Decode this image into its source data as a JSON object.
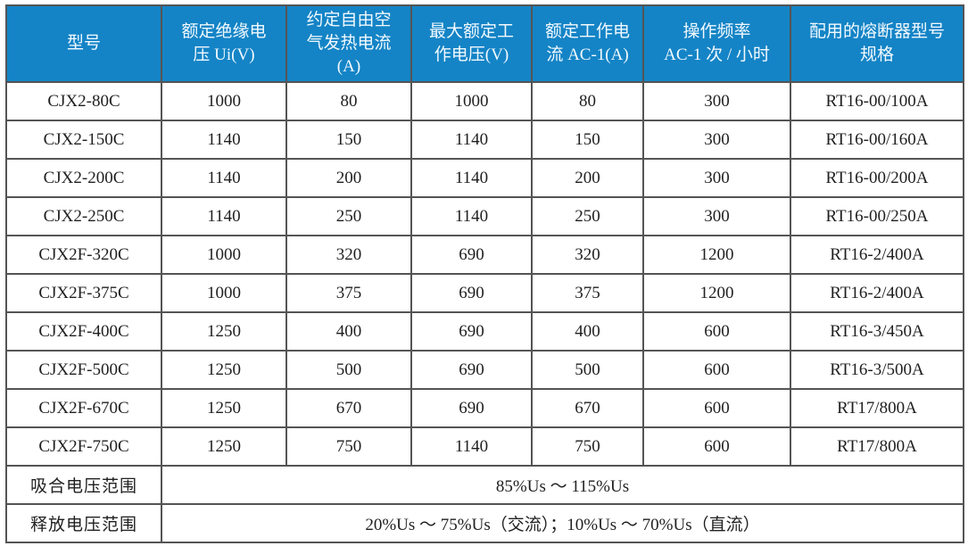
{
  "table": {
    "title_semantic": "contactor-specification-table",
    "columns": [
      "型号",
      "额定绝缘电压 Ui(V)",
      "约定自由空气发热电流(A)",
      "最大额定工作电压(V)",
      "额定工作电流 AC-1(A)",
      "操作频率\nAC-1 次 / 小时",
      "配用的熔断器型号规格"
    ],
    "rows": [
      {
        "cells": [
          "CJX2-80C",
          "1000",
          "80",
          "1000",
          "80",
          "300",
          "RT16-00/100A"
        ]
      },
      {
        "cells": [
          "CJX2-150C",
          "1140",
          "150",
          "1140",
          "150",
          "300",
          "RT16-00/160A"
        ]
      },
      {
        "cells": [
          "CJX2-200C",
          "1140",
          "200",
          "1140",
          "200",
          "300",
          "RT16-00/200A"
        ]
      },
      {
        "cells": [
          "CJX2-250C",
          "1140",
          "250",
          "1140",
          "250",
          "300",
          "RT16-00/250A"
        ]
      },
      {
        "cells": [
          "CJX2F-320C",
          "1000",
          "320",
          "690",
          "320",
          "1200",
          "RT16-2/400A"
        ]
      },
      {
        "cells": [
          "CJX2F-375C",
          "1000",
          "375",
          "690",
          "375",
          "1200",
          "RT16-2/400A"
        ]
      },
      {
        "cells": [
          "CJX2F-400C",
          "1250",
          "400",
          "690",
          "400",
          "600",
          "RT16-3/450A"
        ]
      },
      {
        "cells": [
          "CJX2F-500C",
          "1250",
          "500",
          "690",
          "500",
          "600",
          "RT16-3/500A"
        ]
      },
      {
        "cells": [
          "CJX2F-670C",
          "1250",
          "670",
          "690",
          "670",
          "600",
          "RT17/800A"
        ]
      },
      {
        "cells": [
          "CJX2F-750C",
          "1250",
          "750",
          "1140",
          "750",
          "600",
          "RT17/800A"
        ]
      }
    ],
    "footer": [
      {
        "label": "吸合电压范围",
        "value": "85%Us ～ 115%Us"
      },
      {
        "label": "释放电压范围",
        "value": "20%Us ～ 75%Us（交流）；10%Us ～ 70%Us（直流）"
      }
    ]
  },
  "colors": {
    "header_bg": "#1484c6",
    "header_text": "#f2f9fe",
    "border": "#545454",
    "body_text": "#1f1f1f",
    "background": "#ffffff"
  }
}
